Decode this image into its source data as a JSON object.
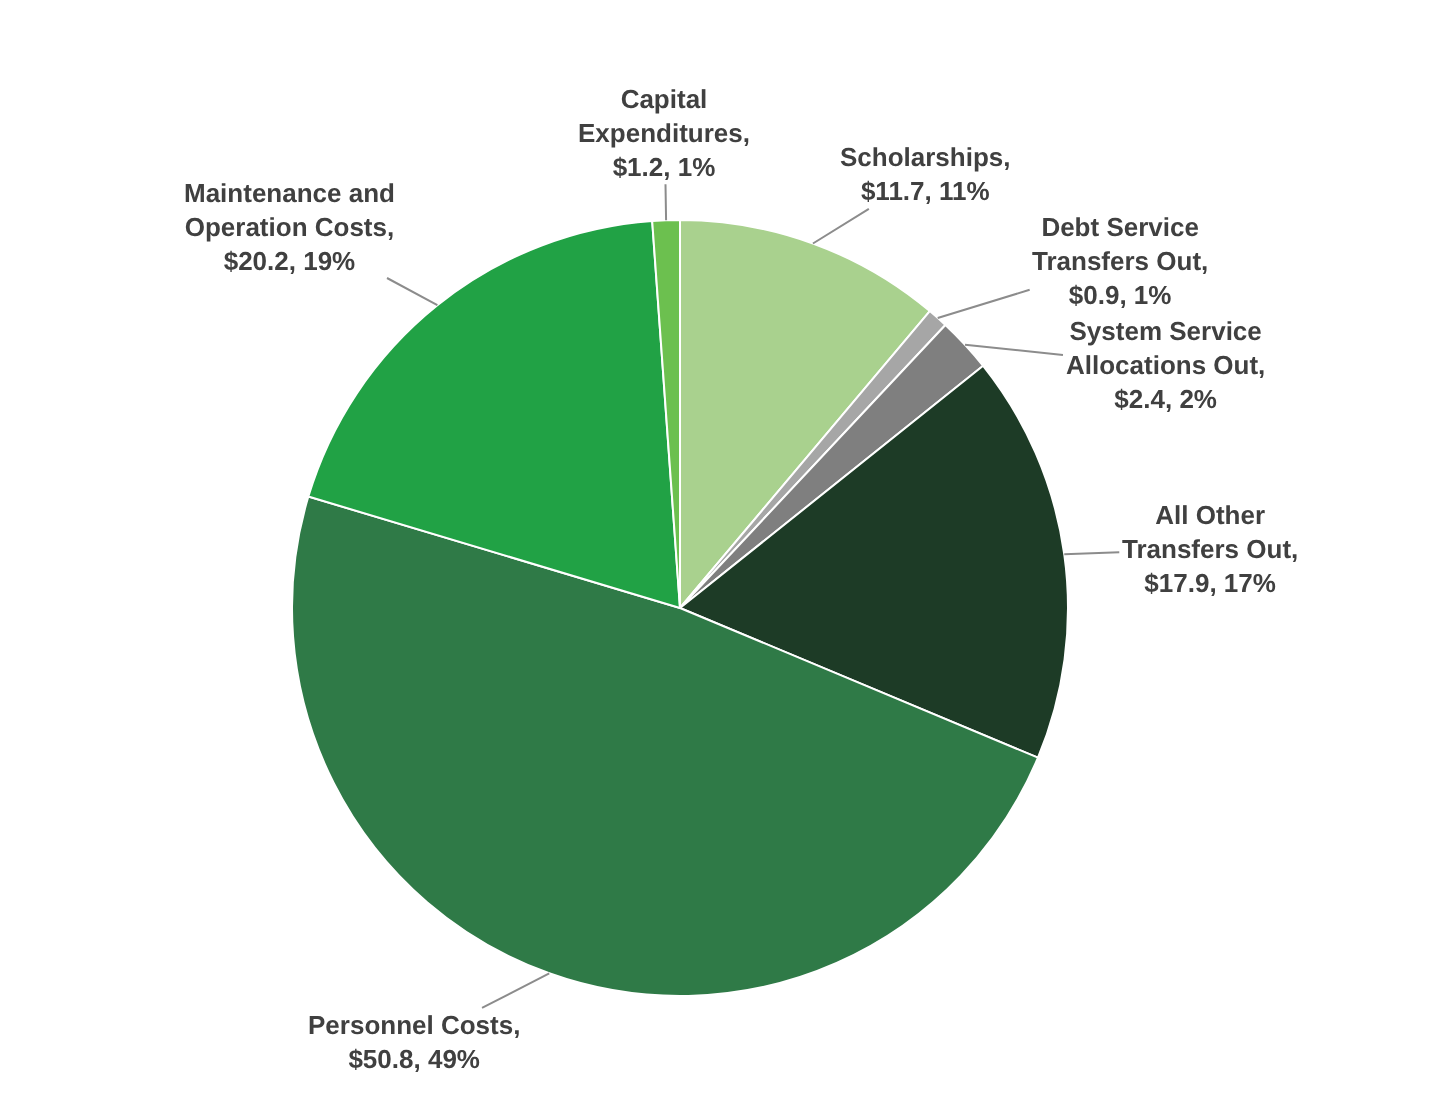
{
  "chart_data": {
    "type": "pie",
    "categories": [
      "Scholarships",
      "Debt Service Transfers Out",
      "System Service Allocations Out",
      "All Other Transfers Out",
      "Personnel Costs",
      "Maintenance and Operation Costs",
      "Capital Expenditures"
    ],
    "values": [
      11.7,
      0.9,
      2.4,
      17.9,
      50.8,
      20.2,
      1.2
    ],
    "value_labels": [
      ", $11.7, 11%",
      ", $0.9, 1%",
      ", $2.4, 2%",
      ", $17.9, 17%",
      ", $50.8, 49%",
      ", $20.2, 19%",
      ", $1.2, 1%"
    ],
    "colors": [
      "#a9d18e",
      "#a6a6a6",
      "#7f7f7f",
      "#1d3b26",
      "#2f7a47",
      "#21a245",
      "#6cc04f"
    ],
    "legend": false
  }
}
